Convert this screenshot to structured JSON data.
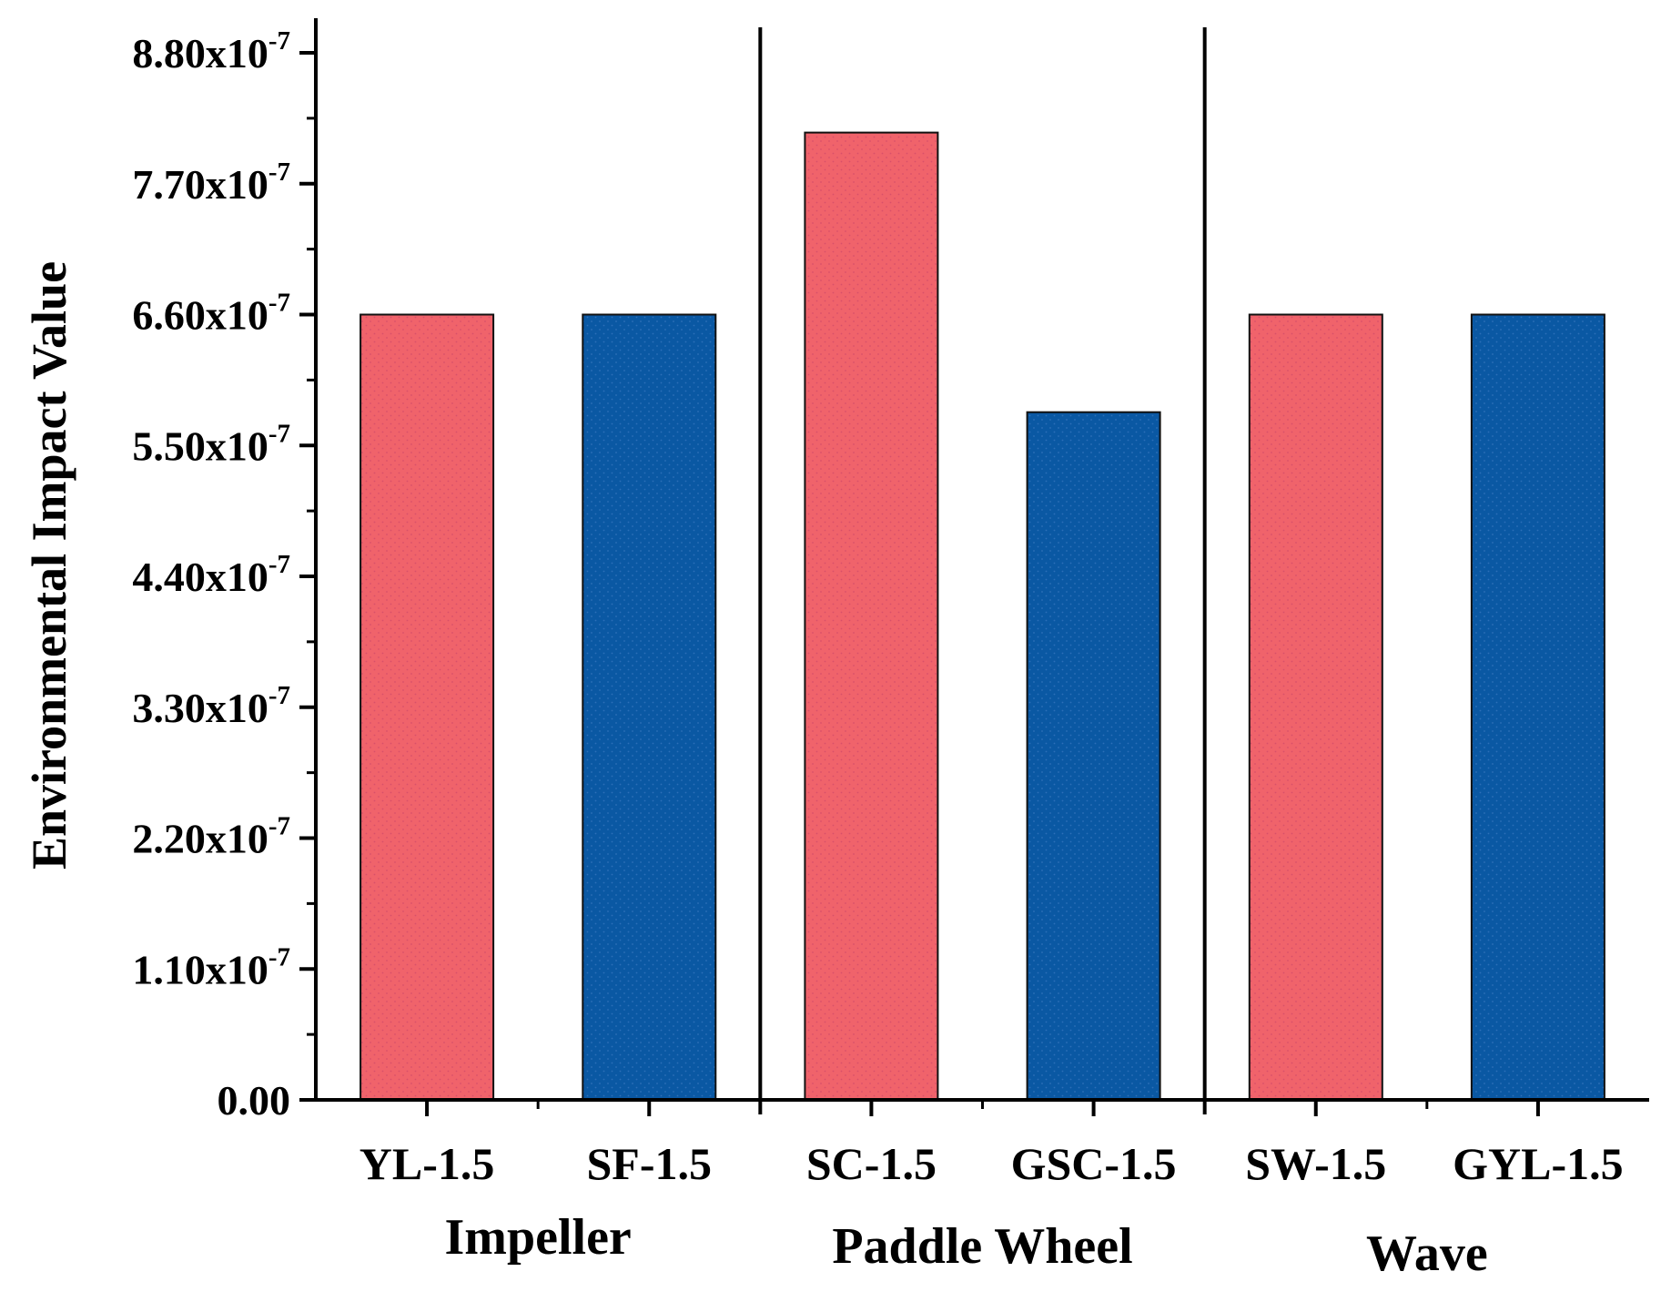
{
  "chart_data": {
    "type": "bar",
    "title": "",
    "xlabel": "",
    "ylabel": "Environmental Impact Value",
    "ylim": [
      0,
      8.8e-07
    ],
    "yticks": [
      {
        "value": 0,
        "label": "0.00",
        "mantissa": "0.00",
        "exponent": ""
      },
      {
        "value": 1.1e-07,
        "label": "1.10x10-7",
        "mantissa": "1.10x10",
        "exponent": "-7"
      },
      {
        "value": 2.2e-07,
        "label": "2.20x10-7",
        "mantissa": "2.20x10",
        "exponent": "-7"
      },
      {
        "value": 3.3e-07,
        "label": "3.30x10-7",
        "mantissa": "3.30x10",
        "exponent": "-7"
      },
      {
        "value": 4.4e-07,
        "label": "4.40x10-7",
        "mantissa": "4.40x10",
        "exponent": "-7"
      },
      {
        "value": 5.5e-07,
        "label": "5.50x10-7",
        "mantissa": "5.50x10",
        "exponent": "-7"
      },
      {
        "value": 6.6e-07,
        "label": "6.60x10-7",
        "mantissa": "6.60x10",
        "exponent": "-7"
      },
      {
        "value": 7.7e-07,
        "label": "7.70x10-7",
        "mantissa": "7.70x10",
        "exponent": "-7"
      },
      {
        "value": 8.8e-07,
        "label": "8.80x10-7",
        "mantissa": "8.80x10",
        "exponent": "-7"
      }
    ],
    "categories": [
      "YL-1.5",
      "SF-1.5",
      "SC-1.5",
      "GSC-1.5",
      "SW-1.5",
      "GYL-1.5"
    ],
    "values": [
      6.6e-07,
      6.6e-07,
      8.13e-07,
      5.78e-07,
      6.6e-07,
      6.6e-07
    ],
    "bar_colors": [
      "#f0636b",
      "#0a58a3",
      "#f0636b",
      "#0a58a3",
      "#f0636b",
      "#0a58a3"
    ],
    "groups": [
      {
        "label": "Impeller",
        "categories": [
          "YL-1.5",
          "SF-1.5"
        ]
      },
      {
        "label": "Paddle Wheel",
        "categories": [
          "SC-1.5",
          "GSC-1.5"
        ]
      },
      {
        "label": "Wave",
        "categories": [
          "SW-1.5",
          "GYL-1.5"
        ]
      }
    ],
    "group_separators": true,
    "grid": false,
    "legend": "none"
  },
  "colors": {
    "red_bar": "#f0636b",
    "blue_bar": "#0a58a3",
    "axis": "#000000"
  }
}
